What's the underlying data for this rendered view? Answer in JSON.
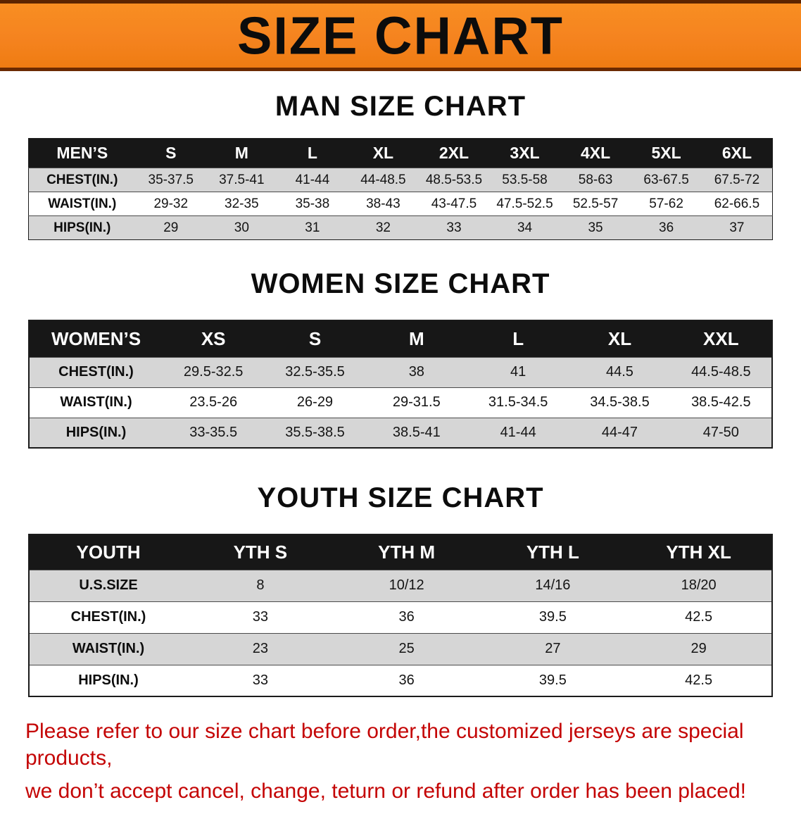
{
  "banner": {
    "title": "SIZE CHART"
  },
  "sections": [
    {
      "id": "men",
      "heading": "MAN SIZE CHART",
      "table": {
        "corner_label": "MEN’S",
        "columns": [
          "S",
          "M",
          "L",
          "XL",
          "2XL",
          "3XL",
          "4XL",
          "5XL",
          "6XL"
        ],
        "rows": [
          {
            "label": "CHEST(IN.)",
            "values": [
              "35-37.5",
              "37.5-41",
              "41-44",
              "44-48.5",
              "48.5-53.5",
              "53.5-58",
              "58-63",
              "63-67.5",
              "67.5-72"
            ]
          },
          {
            "label": "WAIST(IN.)",
            "values": [
              "29-32",
              "32-35",
              "35-38",
              "38-43",
              "43-47.5",
              "47.5-52.5",
              "52.5-57",
              "57-62",
              "62-66.5"
            ]
          },
          {
            "label": "HIPS(IN.)",
            "values": [
              "29",
              "30",
              "31",
              "32",
              "33",
              "34",
              "35",
              "36",
              "37"
            ]
          }
        ]
      }
    },
    {
      "id": "women",
      "heading": "WOMEN SIZE CHART",
      "table": {
        "corner_label": "WOMEN’S",
        "columns": [
          "XS",
          "S",
          "M",
          "L",
          "XL",
          "XXL"
        ],
        "rows": [
          {
            "label": "CHEST(IN.)",
            "values": [
              "29.5-32.5",
              "32.5-35.5",
              "38",
              "41",
              "44.5",
              "44.5-48.5"
            ]
          },
          {
            "label": "WAIST(IN.)",
            "values": [
              "23.5-26",
              "26-29",
              "29-31.5",
              "31.5-34.5",
              "34.5-38.5",
              "38.5-42.5"
            ]
          },
          {
            "label": "HIPS(IN.)",
            "values": [
              "33-35.5",
              "35.5-38.5",
              "38.5-41",
              "41-44",
              "44-47",
              "47-50"
            ]
          }
        ]
      }
    },
    {
      "id": "youth",
      "heading": "YOUTH SIZE CHART",
      "table": {
        "corner_label": "YOUTH",
        "columns": [
          "YTH S",
          "YTH M",
          "YTH L",
          "YTH XL"
        ],
        "rows": [
          {
            "label": "U.S.SIZE",
            "values": [
              "8",
              "10/12",
              "14/16",
              "18/20"
            ]
          },
          {
            "label": "CHEST(IN.)",
            "values": [
              "33",
              "36",
              "39.5",
              "42.5"
            ]
          },
          {
            "label": "WAIST(IN.)",
            "values": [
              "23",
              "25",
              "27",
              "29"
            ]
          },
          {
            "label": "HIPS(IN.)",
            "values": [
              "33",
              "36",
              "39.5",
              "42.5"
            ]
          }
        ]
      }
    }
  ],
  "footer": {
    "line1": "Please refer to our size chart before order,the customized jerseys are special products,",
    "line2": "we don’t accept cancel, change, teturn or refund after order has been placed!"
  },
  "colors": {
    "banner_bg": "#f5831f",
    "banner_edge": "#6b2a00",
    "table_header_bg": "#171717",
    "row_alt_bg": "#d6d6d6",
    "footer_text": "#c40404"
  }
}
